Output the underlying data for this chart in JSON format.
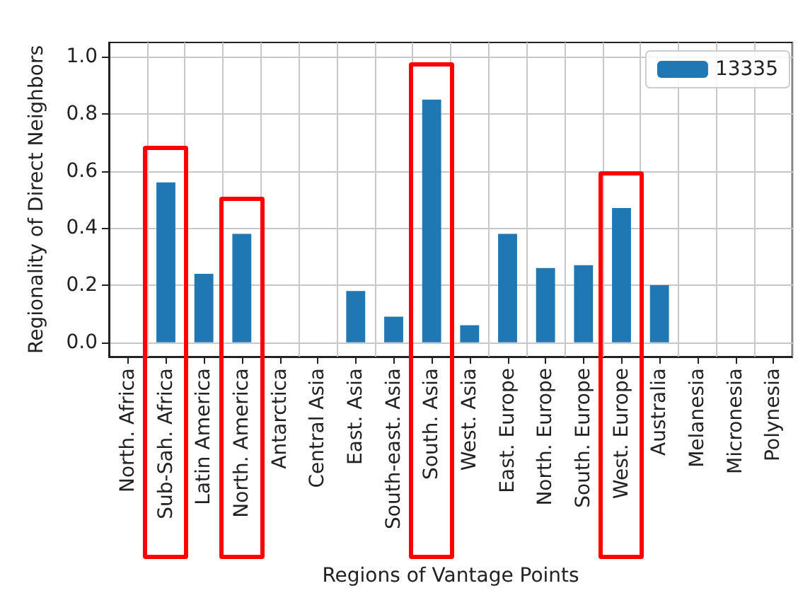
{
  "chart_data": {
    "type": "bar",
    "xlabel": "Regions of Vantage Points",
    "ylabel": "Regionality of Direct Neighbors",
    "categories": [
      "North. Africa",
      "Sub-Sah. Africa",
      "Latin America",
      "North. America",
      "Antarctica",
      "Central Asia",
      "East. Asia",
      "South-east. Asia",
      "South. Asia",
      "West. Asia",
      "East. Europe",
      "North. Europe",
      "South. Europe",
      "West. Europe",
      "Australia",
      "Melanesia",
      "Micronesia",
      "Polynesia"
    ],
    "series": [
      {
        "name": "13335",
        "color": "#1f77b4",
        "values": [
          0,
          0.56,
          0.24,
          0.38,
          0,
          0,
          0.18,
          0.09,
          0.85,
          0.06,
          0.38,
          0.26,
          0.27,
          0.47,
          0.2,
          0,
          0,
          0
        ]
      }
    ],
    "ylim": [
      -0.05,
      1.05
    ],
    "yticks": [
      {
        "value": 0,
        "label": "0.0"
      },
      {
        "value": 0.2,
        "label": "0.2"
      },
      {
        "value": 0.4,
        "label": "0.4"
      },
      {
        "value": 0.6,
        "label": "0.6"
      },
      {
        "value": 0.8,
        "label": "0.8"
      },
      {
        "value": 1,
        "label": "1.0"
      }
    ],
    "grid": true,
    "legend": "top right"
  }
}
